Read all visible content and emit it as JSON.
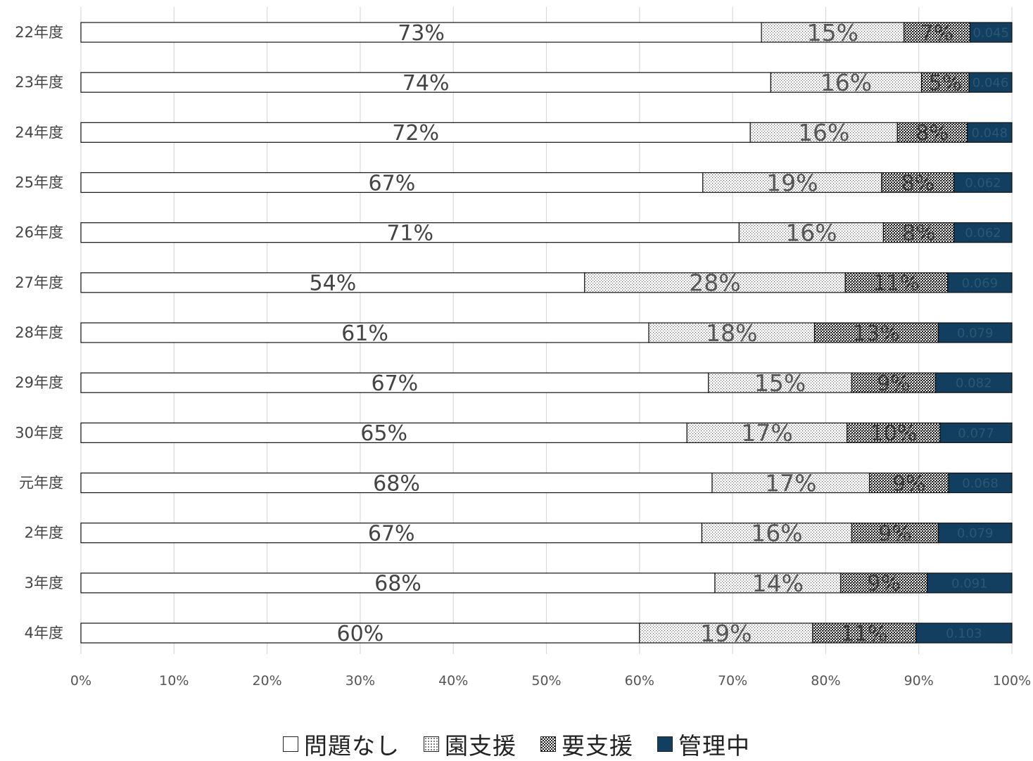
{
  "chart_data": {
    "type": "bar",
    "orientation": "horizontal",
    "stacked": "percent",
    "categories": [
      "22年度",
      "23年度",
      "24年度",
      "25年度",
      "26年度",
      "27年度",
      "28年度",
      "29年度",
      "30年度",
      "元年度",
      "2年度",
      "3年度",
      "4年度"
    ],
    "series": [
      {
        "name": "問題なし",
        "values": [
          0.731,
          0.741,
          0.719,
          0.668,
          0.707,
          0.541,
          0.61,
          0.674,
          0.651,
          0.678,
          0.667,
          0.681,
          0.6
        ]
      },
      {
        "name": "園支援",
        "values": [
          0.153,
          0.162,
          0.158,
          0.192,
          0.155,
          0.28,
          0.178,
          0.154,
          0.172,
          0.169,
          0.161,
          0.135,
          0.186
        ]
      },
      {
        "name": "要支援",
        "values": [
          0.071,
          0.051,
          0.075,
          0.078,
          0.076,
          0.11,
          0.133,
          0.09,
          0.1,
          0.085,
          0.093,
          0.093,
          0.111
        ]
      },
      {
        "name": "管理中",
        "values": [
          0.045,
          0.046,
          0.048,
          0.062,
          0.062,
          0.069,
          0.079,
          0.082,
          0.077,
          0.068,
          0.079,
          0.091,
          0.103
        ]
      }
    ],
    "data_labels": [
      [
        "73%",
        "15%",
        "7%",
        "0.045"
      ],
      [
        "74%",
        "16%",
        "5%",
        "0.046"
      ],
      [
        "72%",
        "16%",
        "8%",
        "0.048"
      ],
      [
        "67%",
        "19%",
        "8%",
        "0.062"
      ],
      [
        "71%",
        "16%",
        "8%",
        "0.062"
      ],
      [
        "54%",
        "28%",
        "11%",
        "0.069"
      ],
      [
        "61%",
        "18%",
        "13%",
        "0.079"
      ],
      [
        "67%",
        "15%",
        "9%",
        "0.082"
      ],
      [
        "65%",
        "17%",
        "10%",
        "0.077"
      ],
      [
        "68%",
        "17%",
        "9%",
        "0.068"
      ],
      [
        "67%",
        "16%",
        "9%",
        "0.079"
      ],
      [
        "68%",
        "14%",
        "9%",
        "0.091"
      ],
      [
        "60%",
        "19%",
        "11%",
        "0.103"
      ]
    ],
    "xticks": [
      "0%",
      "10%",
      "20%",
      "30%",
      "40%",
      "50%",
      "60%",
      "70%",
      "80%",
      "90%",
      "100%"
    ],
    "xlim": [
      0,
      1
    ],
    "grid": "vertical",
    "legend_position": "bottom",
    "colors": {
      "問題なし": "#ffffff",
      "園支援": "dots-light",
      "要支援": "checker-dark",
      "管理中": "#123f5f"
    }
  }
}
